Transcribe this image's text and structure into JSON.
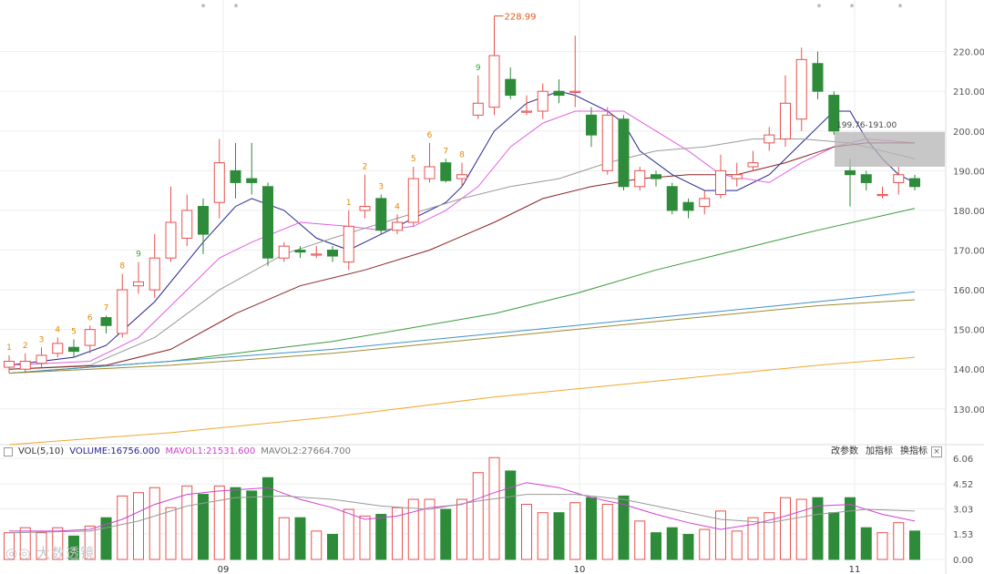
{
  "colors": {
    "up": "#e8504f",
    "down": "#2e8b3a",
    "grid": "#eeeeee",
    "bg": "#ffffff",
    "ma5": "#25258f",
    "ma10": "#e05fe0",
    "ma20": "#9a9a9a",
    "ma30": "#8b2323",
    "ma60": "#3a9a3a",
    "ma120": "#3f90c8",
    "ma150": "#a08a30",
    "ma250": "#f0a830",
    "volma1": "#d040d0",
    "volma2": "#999999"
  },
  "price_axis": {
    "ticks": [
      "220.00",
      "210.00",
      "200.00",
      "190.00",
      "180.00",
      "170.00",
      "160.00",
      "150.00",
      "140.00",
      "130.00"
    ]
  },
  "volume_axis": {
    "ticks": [
      "6.06",
      "4.52",
      "3.03",
      "1.53",
      "0.00"
    ]
  },
  "x_labels": [
    "09",
    "10",
    "11"
  ],
  "annotations": {
    "high": "228.99",
    "range": "199.76-191.00",
    "markers": [
      "*",
      "*",
      "*",
      "*",
      "*"
    ]
  },
  "volume_header": {
    "name": "VOL(5,10)",
    "volume": "VOLUME:16756.000",
    "mavol1": "MAVOL1:21531.600",
    "mavol2": "MAVOL2:27664.700"
  },
  "tools": [
    "改参数",
    "加指标",
    "换指标"
  ],
  "close_label": "×",
  "watermark": "◎◎ 大数透镜",
  "chart_data": {
    "type": "candlestick",
    "candles": [
      {
        "o": 140.5,
        "c": 142,
        "h": 143.5,
        "l": 139,
        "td": "1"
      },
      {
        "o": 140,
        "c": 142,
        "h": 144,
        "l": 139,
        "td": "2"
      },
      {
        "o": 141.5,
        "c": 143.5,
        "h": 145.5,
        "l": 140.5,
        "td": "3"
      },
      {
        "o": 144,
        "c": 146.5,
        "h": 148,
        "l": 143,
        "td": "4"
      },
      {
        "o": 145.5,
        "c": 144.5,
        "h": 147.5,
        "l": 143,
        "td": "5"
      },
      {
        "o": 146,
        "c": 150,
        "h": 151,
        "l": 144,
        "td": "6"
      },
      {
        "o": 153,
        "c": 151,
        "h": 153.5,
        "l": 149,
        "td": "7"
      },
      {
        "o": 149,
        "c": 160,
        "h": 164,
        "l": 148,
        "td": "8"
      },
      {
        "o": 161,
        "c": 162,
        "h": 167,
        "l": 159,
        "td": "9"
      },
      {
        "o": 160,
        "c": 168,
        "h": 174,
        "l": 158,
        "td": ""
      },
      {
        "o": 168,
        "c": 177,
        "h": 186,
        "l": 167,
        "td": ""
      },
      {
        "o": 173,
        "c": 180,
        "h": 184,
        "l": 171,
        "td": ""
      },
      {
        "o": 181,
        "c": 174,
        "h": 183,
        "l": 169,
        "td": ""
      },
      {
        "o": 182,
        "c": 192,
        "h": 198,
        "l": 178,
        "td": ""
      },
      {
        "o": 190,
        "c": 187,
        "h": 197,
        "l": 183,
        "td": ""
      },
      {
        "o": 188,
        "c": 187,
        "h": 197,
        "l": 184,
        "td": ""
      },
      {
        "o": 186,
        "c": 168,
        "h": 187,
        "l": 166,
        "td": ""
      },
      {
        "o": 168,
        "c": 171,
        "h": 172,
        "l": 167,
        "td": ""
      },
      {
        "o": 170,
        "c": 169.5,
        "h": 171,
        "l": 168,
        "td": ""
      },
      {
        "o": 169,
        "c": 169,
        "h": 171,
        "l": 168,
        "td": ""
      },
      {
        "o": 170,
        "c": 168.5,
        "h": 171,
        "l": 167,
        "td": ""
      },
      {
        "o": 167,
        "c": 176,
        "h": 180,
        "l": 165,
        "td": "1"
      },
      {
        "o": 180,
        "c": 181,
        "h": 189,
        "l": 178,
        "td": "2"
      },
      {
        "o": 183,
        "c": 175,
        "h": 184,
        "l": 174,
        "td": "3"
      },
      {
        "o": 175,
        "c": 177,
        "h": 179,
        "l": 174,
        "td": "4"
      },
      {
        "o": 177,
        "c": 188,
        "h": 191,
        "l": 176,
        "td": "5"
      },
      {
        "o": 188,
        "c": 191,
        "h": 197,
        "l": 187,
        "td": "6"
      },
      {
        "o": 192,
        "c": 187.5,
        "h": 193,
        "l": 187,
        "td": "7"
      },
      {
        "o": 188,
        "c": 189,
        "h": 192,
        "l": 186,
        "td": "8"
      },
      {
        "o": 204,
        "c": 207,
        "h": 214,
        "l": 203,
        "td": "9"
      },
      {
        "o": 206,
        "c": 219,
        "h": 228.99,
        "l": 204,
        "td": ""
      },
      {
        "o": 213,
        "c": 209,
        "h": 216,
        "l": 208,
        "td": ""
      },
      {
        "o": 205,
        "c": 205,
        "h": 209,
        "l": 204,
        "td": ""
      },
      {
        "o": 205,
        "c": 210,
        "h": 212,
        "l": 203,
        "td": ""
      },
      {
        "o": 210,
        "c": 209,
        "h": 213,
        "l": 207,
        "td": ""
      },
      {
        "o": 210,
        "c": 210,
        "h": 224,
        "l": 206,
        "td": ""
      },
      {
        "o": 204,
        "c": 199,
        "h": 206,
        "l": 196,
        "td": ""
      },
      {
        "o": 190,
        "c": 204,
        "h": 206,
        "l": 189,
        "td": ""
      },
      {
        "o": 203,
        "c": 186,
        "h": 204,
        "l": 185,
        "td": ""
      },
      {
        "o": 186,
        "c": 190,
        "h": 191,
        "l": 185,
        "td": ""
      },
      {
        "o": 189,
        "c": 188,
        "h": 190,
        "l": 186,
        "td": ""
      },
      {
        "o": 186,
        "c": 180,
        "h": 187,
        "l": 179,
        "td": ""
      },
      {
        "o": 182,
        "c": 180,
        "h": 183,
        "l": 178,
        "td": ""
      },
      {
        "o": 181,
        "c": 183,
        "h": 185,
        "l": 179,
        "td": ""
      },
      {
        "o": 184,
        "c": 190,
        "h": 194,
        "l": 183,
        "td": ""
      },
      {
        "o": 188,
        "c": 189,
        "h": 192,
        "l": 186,
        "td": ""
      },
      {
        "o": 191,
        "c": 192,
        "h": 195,
        "l": 190,
        "td": ""
      },
      {
        "o": 197,
        "c": 199,
        "h": 201,
        "l": 195,
        "td": ""
      },
      {
        "o": 198,
        "c": 207,
        "h": 214,
        "l": 196,
        "td": ""
      },
      {
        "o": 203,
        "c": 218,
        "h": 221,
        "l": 200,
        "td": ""
      },
      {
        "o": 217,
        "c": 210,
        "h": 220,
        "l": 208,
        "td": ""
      },
      {
        "o": 209,
        "c": 200,
        "h": 210,
        "l": 199,
        "td": ""
      },
      {
        "o": 190,
        "c": 189,
        "h": 193,
        "l": 181,
        "td": ""
      },
      {
        "o": 189,
        "c": 187,
        "h": 190,
        "l": 185,
        "td": ""
      },
      {
        "o": 184,
        "c": 184,
        "h": 186,
        "l": 183,
        "td": ""
      },
      {
        "o": 187,
        "c": 189,
        "h": 191,
        "l": 184,
        "td": ""
      },
      {
        "o": 188,
        "c": 186,
        "h": 189,
        "l": 185,
        "td": ""
      }
    ],
    "volumes": [
      1.6,
      1.9,
      1.6,
      1.9,
      1.4,
      2.0,
      2.5,
      3.8,
      4.0,
      4.3,
      3.1,
      4.4,
      3.9,
      4.4,
      4.3,
      4.1,
      4.9,
      2.5,
      2.5,
      1.7,
      1.5,
      3.0,
      2.6,
      2.7,
      3.1,
      3.6,
      3.6,
      3.0,
      3.6,
      5.2,
      6.1,
      5.3,
      3.3,
      2.8,
      2.8,
      3.4,
      3.7,
      3.3,
      3.8,
      2.3,
      1.6,
      1.9,
      1.5,
      1.8,
      2.9,
      1.7,
      2.5,
      2.8,
      3.7,
      3.6,
      3.7,
      2.8,
      3.7,
      1.9,
      1.6,
      2.2,
      1.7
    ],
    "ma_lines": {
      "ma5": [
        [
          0,
          141
        ],
        [
          4,
          143
        ],
        [
          6,
          146
        ],
        [
          9,
          157
        ],
        [
          12,
          172
        ],
        [
          14,
          181
        ],
        [
          15,
          183
        ],
        [
          17,
          180
        ],
        [
          19,
          173
        ],
        [
          21,
          170
        ],
        [
          23,
          174
        ],
        [
          25,
          178
        ],
        [
          27,
          182
        ],
        [
          28,
          186
        ],
        [
          30,
          200
        ],
        [
          32,
          207
        ],
        [
          34,
          210
        ],
        [
          35,
          209
        ],
        [
          37,
          205
        ],
        [
          38,
          202
        ],
        [
          39,
          195
        ],
        [
          41,
          189
        ],
        [
          43,
          185
        ],
        [
          45,
          185
        ],
        [
          47,
          189
        ],
        [
          49,
          197
        ],
        [
          51,
          205
        ],
        [
          52,
          205
        ],
        [
          53,
          198
        ],
        [
          54,
          193
        ],
        [
          55,
          189
        ],
        [
          56,
          187
        ]
      ],
      "ma10": [
        [
          0,
          141
        ],
        [
          5,
          142
        ],
        [
          8,
          148
        ],
        [
          11,
          160
        ],
        [
          13,
          168
        ],
        [
          15,
          172
        ],
        [
          18,
          177
        ],
        [
          21,
          176
        ],
        [
          23,
          175
        ],
        [
          25,
          176
        ],
        [
          27,
          180
        ],
        [
          29,
          186
        ],
        [
          31,
          196
        ],
        [
          33,
          202
        ],
        [
          35,
          205
        ],
        [
          38,
          205
        ],
        [
          40,
          200
        ],
        [
          42,
          195
        ],
        [
          44,
          189
        ],
        [
          47,
          187
        ],
        [
          49,
          192
        ],
        [
          51,
          196
        ],
        [
          53,
          198
        ],
        [
          56,
          197
        ]
      ],
      "ma20": [
        [
          0,
          140
        ],
        [
          5,
          141
        ],
        [
          9,
          148
        ],
        [
          13,
          160
        ],
        [
          17,
          169
        ],
        [
          20,
          173
        ],
        [
          24,
          178
        ],
        [
          28,
          183
        ],
        [
          31,
          186
        ],
        [
          34,
          188
        ],
        [
          37,
          192
        ],
        [
          40,
          195
        ],
        [
          43,
          196
        ],
        [
          46,
          198
        ],
        [
          49,
          198
        ],
        [
          52,
          197
        ],
        [
          56,
          193
        ]
      ],
      "ma30": [
        [
          0,
          140
        ],
        [
          6,
          141
        ],
        [
          10,
          145
        ],
        [
          14,
          154
        ],
        [
          18,
          161
        ],
        [
          22,
          165
        ],
        [
          26,
          170
        ],
        [
          30,
          177
        ],
        [
          33,
          183
        ],
        [
          36,
          186
        ],
        [
          39,
          188
        ],
        [
          42,
          189
        ],
        [
          45,
          189
        ],
        [
          48,
          192
        ],
        [
          51,
          196
        ],
        [
          53,
          197
        ],
        [
          56,
          197
        ]
      ],
      "ma60": [
        [
          0,
          139
        ],
        [
          10,
          142
        ],
        [
          20,
          147
        ],
        [
          30,
          154
        ],
        [
          35,
          159
        ],
        [
          40,
          165
        ],
        [
          45,
          170
        ],
        [
          50,
          175
        ],
        [
          56,
          180.5
        ]
      ],
      "ma120": [
        [
          0,
          139
        ],
        [
          10,
          142
        ],
        [
          20,
          145
        ],
        [
          30,
          149
        ],
        [
          40,
          153
        ],
        [
          50,
          157
        ],
        [
          56,
          159.5
        ]
      ],
      "ma150": [
        [
          0,
          139
        ],
        [
          10,
          141
        ],
        [
          20,
          144
        ],
        [
          30,
          148
        ],
        [
          40,
          152
        ],
        [
          50,
          156
        ],
        [
          56,
          157.5
        ]
      ],
      "ma250": [
        [
          0,
          121
        ],
        [
          10,
          124
        ],
        [
          20,
          128
        ],
        [
          30,
          133
        ],
        [
          40,
          137
        ],
        [
          50,
          141
        ],
        [
          56,
          143
        ]
      ]
    },
    "volma1": [
      [
        0,
        1.7
      ],
      [
        3,
        1.7
      ],
      [
        5,
        1.8
      ],
      [
        7,
        2.4
      ],
      [
        9,
        3.3
      ],
      [
        11,
        3.9
      ],
      [
        13,
        4.1
      ],
      [
        16,
        4.3
      ],
      [
        18,
        3.6
      ],
      [
        20,
        3.1
      ],
      [
        22,
        2.4
      ],
      [
        24,
        2.6
      ],
      [
        26,
        3.1
      ],
      [
        28,
        3.3
      ],
      [
        30,
        4.0
      ],
      [
        32,
        4.6
      ],
      [
        34,
        4.3
      ],
      [
        36,
        3.7
      ],
      [
        38,
        3.3
      ],
      [
        40,
        2.7
      ],
      [
        42,
        2.2
      ],
      [
        44,
        1.8
      ],
      [
        46,
        2.1
      ],
      [
        48,
        2.6
      ],
      [
        50,
        3.2
      ],
      [
        52,
        3.3
      ],
      [
        54,
        2.7
      ],
      [
        56,
        2.3
      ]
    ],
    "volma2": [
      [
        0,
        1.6
      ],
      [
        5,
        1.7
      ],
      [
        8,
        2.3
      ],
      [
        11,
        3.2
      ],
      [
        14,
        3.7
      ],
      [
        17,
        3.8
      ],
      [
        20,
        3.6
      ],
      [
        23,
        3.2
      ],
      [
        26,
        3.0
      ],
      [
        29,
        3.5
      ],
      [
        32,
        3.9
      ],
      [
        35,
        3.9
      ],
      [
        38,
        3.6
      ],
      [
        41,
        3.0
      ],
      [
        44,
        2.4
      ],
      [
        47,
        2.2
      ],
      [
        50,
        2.7
      ],
      [
        53,
        3.0
      ],
      [
        56,
        2.9
      ]
    ],
    "ylim": [
      121,
      233
    ],
    "vol_ylim": [
      0,
      6.06
    ]
  }
}
